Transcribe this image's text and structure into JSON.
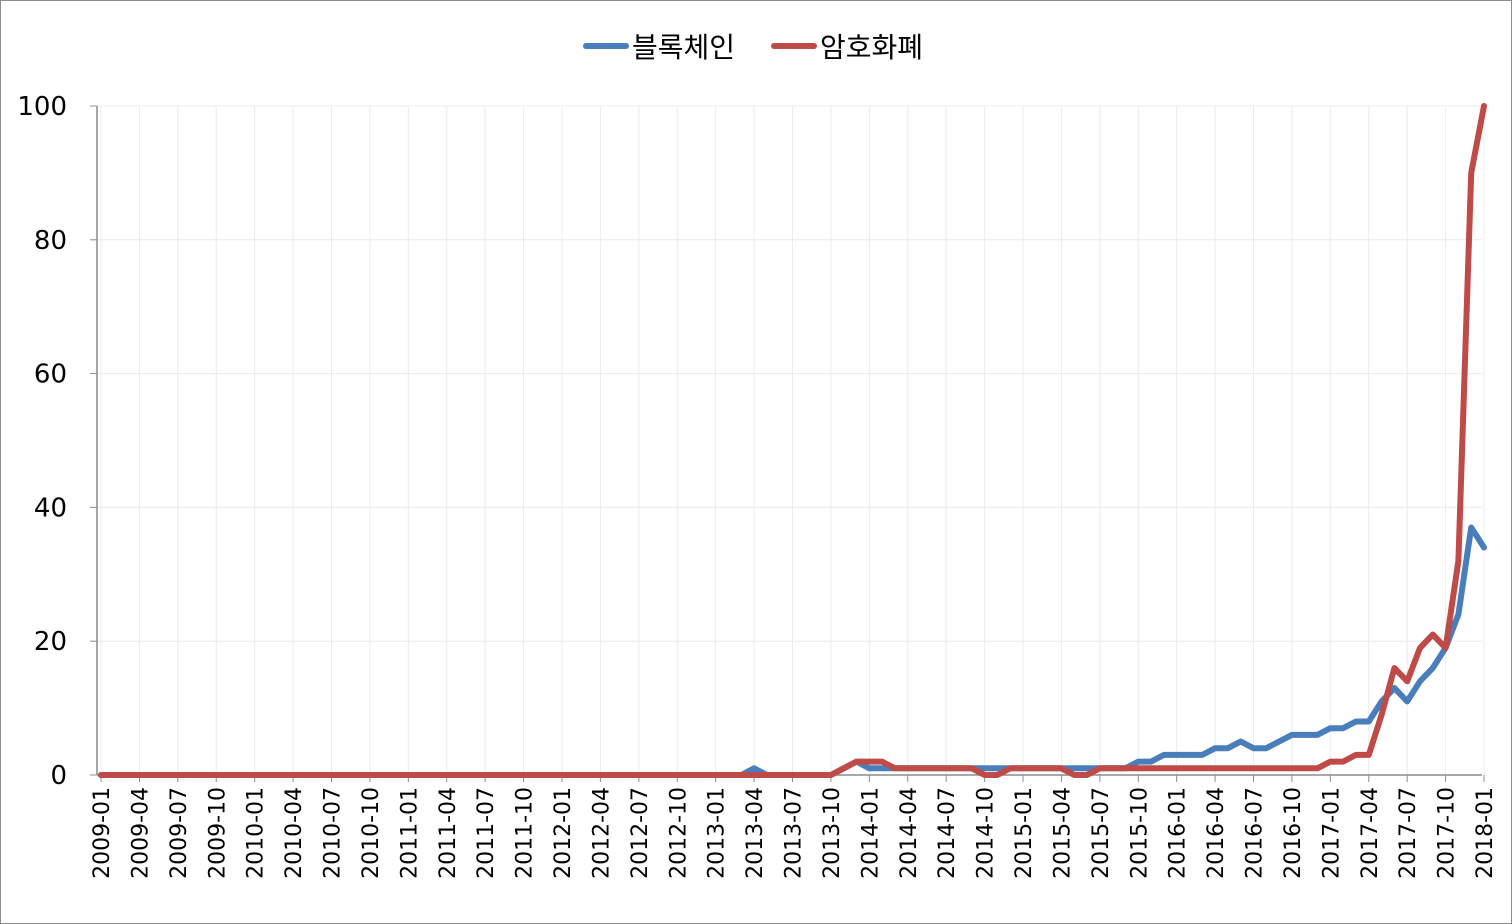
{
  "chart_data": {
    "type": "line",
    "title": "",
    "xlabel": "",
    "ylabel": "",
    "ylim": [
      0,
      100
    ],
    "yticks": [
      0,
      20,
      40,
      60,
      80,
      100
    ],
    "x_tick_labels": [
      "2009-01",
      "2009-04",
      "2009-07",
      "2009-10",
      "2010-01",
      "2010-04",
      "2010-07",
      "2010-10",
      "2011-01",
      "2011-04",
      "2011-07",
      "2011-10",
      "2012-01",
      "2012-04",
      "2012-07",
      "2012-10",
      "2013-01",
      "2013-04",
      "2013-07",
      "2013-10",
      "2014-01",
      "2014-04",
      "2014-07",
      "2014-10",
      "2015-01",
      "2015-04",
      "2015-07",
      "2015-10",
      "2016-01",
      "2016-04",
      "2016-07",
      "2016-10",
      "2017-01",
      "2017-04",
      "2017-07",
      "2017-10",
      "2018-01"
    ],
    "x_tick_every_months": 3,
    "grid": "vertical-and-horizontal",
    "legend_position": "top-center",
    "series": [
      {
        "name": "블록체인",
        "color": "#4a7ebb",
        "points": [
          [
            "2009-01",
            0
          ],
          [
            "2013-03",
            0
          ],
          [
            "2013-04",
            1
          ],
          [
            "2013-05",
            0
          ],
          [
            "2013-10",
            0
          ],
          [
            "2013-11",
            1
          ],
          [
            "2013-12",
            2
          ],
          [
            "2014-01",
            1
          ],
          [
            "2014-02",
            1
          ],
          [
            "2014-03",
            1
          ],
          [
            "2015-06",
            1
          ],
          [
            "2015-09",
            1
          ],
          [
            "2015-10",
            2
          ],
          [
            "2015-11",
            2
          ],
          [
            "2015-12",
            3
          ],
          [
            "2016-03",
            3
          ],
          [
            "2016-04",
            4
          ],
          [
            "2016-05",
            4
          ],
          [
            "2016-06",
            5
          ],
          [
            "2016-07",
            4
          ],
          [
            "2016-08",
            4
          ],
          [
            "2016-09",
            5
          ],
          [
            "2016-10",
            6
          ],
          [
            "2016-12",
            6
          ],
          [
            "2017-01",
            7
          ],
          [
            "2017-02",
            7
          ],
          [
            "2017-03",
            8
          ],
          [
            "2017-04",
            8
          ],
          [
            "2017-05",
            11
          ],
          [
            "2017-06",
            13
          ],
          [
            "2017-07",
            11
          ],
          [
            "2017-08",
            14
          ],
          [
            "2017-09",
            16
          ],
          [
            "2017-10",
            19
          ],
          [
            "2017-11",
            24
          ],
          [
            "2017-12",
            37
          ],
          [
            "2018-01",
            34
          ]
        ]
      },
      {
        "name": "암호화폐",
        "color": "#be4b48",
        "points": [
          [
            "2009-01",
            0
          ],
          [
            "2013-10",
            0
          ],
          [
            "2013-11",
            1
          ],
          [
            "2013-12",
            2
          ],
          [
            "2014-01",
            2
          ],
          [
            "2014-02",
            2
          ],
          [
            "2014-03",
            1
          ],
          [
            "2014-09",
            1
          ],
          [
            "2014-10",
            0
          ],
          [
            "2014-11",
            0
          ],
          [
            "2014-12",
            1
          ],
          [
            "2015-04",
            1
          ],
          [
            "2015-05",
            0
          ],
          [
            "2015-06",
            0
          ],
          [
            "2015-07",
            1
          ],
          [
            "2016-12",
            1
          ],
          [
            "2017-01",
            2
          ],
          [
            "2017-02",
            2
          ],
          [
            "2017-03",
            3
          ],
          [
            "2017-04",
            3
          ],
          [
            "2017-05",
            9
          ],
          [
            "2017-06",
            16
          ],
          [
            "2017-07",
            14
          ],
          [
            "2017-08",
            19
          ],
          [
            "2017-09",
            21
          ],
          [
            "2017-10",
            19
          ],
          [
            "2017-11",
            32
          ],
          [
            "2017-12",
            90
          ],
          [
            "2018-01",
            100
          ]
        ]
      }
    ]
  }
}
